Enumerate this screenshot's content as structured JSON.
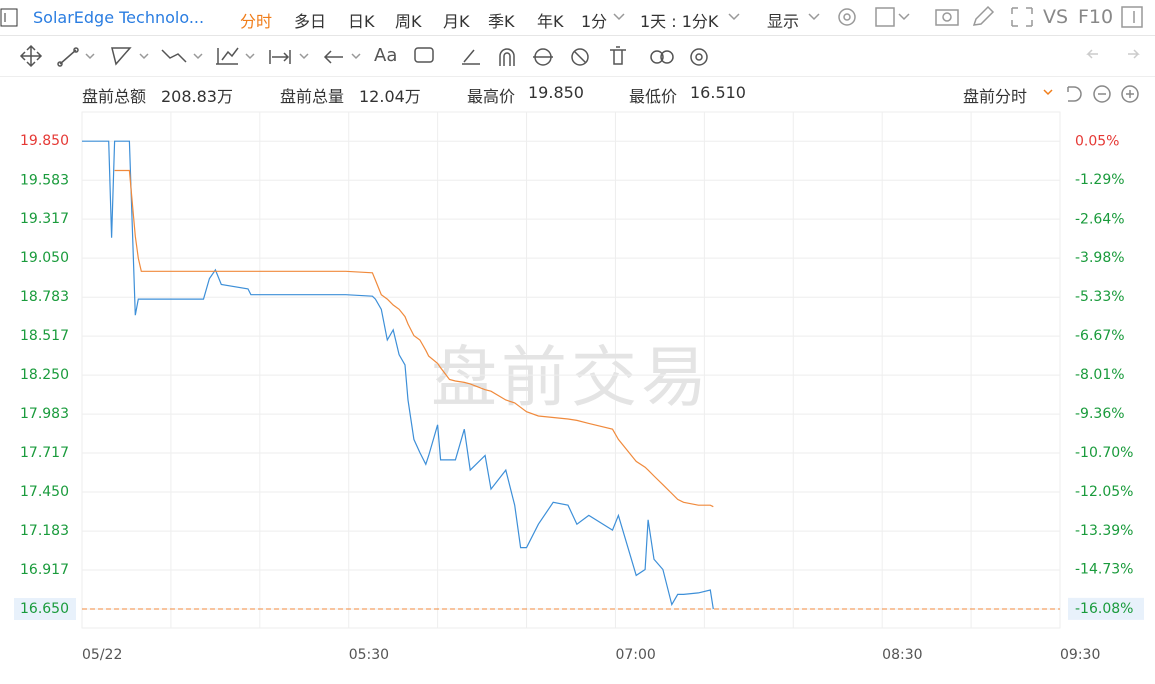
{
  "header": {
    "symbol": "SolarEdge Technolo...",
    "tabs": [
      "分时",
      "多日",
      "日K",
      "周K",
      "月K",
      "季K",
      "年K",
      "1分",
      "1天 : 1分K",
      "显示",
      "VS",
      "F10"
    ]
  },
  "toolbar": {
    "text_tool": "Aa"
  },
  "stats": [
    {
      "label": "盘前总额",
      "value": "208.83万"
    },
    {
      "label": "盘前总量",
      "value": "12.04万"
    },
    {
      "label": "最高价",
      "value": "19.850"
    },
    {
      "label": "最低价",
      "value": "16.510"
    }
  ],
  "chart_mode": "盘前分时",
  "chart_data": {
    "type": "line",
    "watermark": "盘前交易",
    "x": [
      "04:00",
      "04:09",
      "04:10",
      "04:11",
      "04:16",
      "04:18",
      "04:19",
      "04:20",
      "04:41",
      "04:43",
      "04:45",
      "04:47",
      "04:56",
      "04:57",
      "05:29",
      "05:38",
      "05:39",
      "05:41",
      "05:43",
      "05:45",
      "05:47",
      "05:49",
      "05:50",
      "05:52",
      "05:54",
      "05:56",
      "05:57",
      "06:00",
      "06:01",
      "06:04",
      "06:06",
      "06:09",
      "06:11",
      "06:16",
      "06:18",
      "06:23",
      "06:26",
      "06:28",
      "06:30",
      "06:34",
      "06:39",
      "06:44",
      "06:47",
      "06:51",
      "06:59",
      "07:01",
      "07:07",
      "07:10",
      "07:11",
      "07:13",
      "07:16",
      "07:19",
      "07:21",
      "07:23",
      "07:28",
      "07:32",
      "07:33"
    ],
    "series": [
      {
        "color": "#3d8fd8",
        "values": [
          19.85,
          19.85,
          19.19,
          19.85,
          19.85,
          18.66,
          18.77,
          18.77,
          18.77,
          18.91,
          18.97,
          18.87,
          18.84,
          18.8,
          18.8,
          18.79,
          18.77,
          18.7,
          18.49,
          18.56,
          18.39,
          18.32,
          18.08,
          17.81,
          17.72,
          17.64,
          17.7,
          17.91,
          17.67,
          17.67,
          17.67,
          17.88,
          17.6,
          17.7,
          17.47,
          17.6,
          17.36,
          17.07,
          17.07,
          17.23,
          17.38,
          17.36,
          17.23,
          17.29,
          17.19,
          17.29,
          16.88,
          16.92,
          17.26,
          16.99,
          16.92,
          16.68,
          16.75,
          16.75,
          16.76,
          16.78,
          16.65
        ]
      },
      {
        "color": "#f08a3c",
        "values": [
          null,
          null,
          null,
          19.65,
          19.65,
          19.2,
          19.05,
          18.96,
          18.96,
          18.96,
          18.96,
          18.96,
          18.96,
          18.96,
          18.96,
          18.95,
          18.9,
          18.8,
          18.77,
          18.73,
          18.7,
          18.65,
          18.6,
          18.52,
          18.49,
          18.42,
          18.38,
          18.33,
          18.3,
          18.22,
          18.21,
          18.2,
          18.19,
          18.15,
          18.14,
          18.08,
          18.06,
          18.03,
          18,
          17.97,
          17.96,
          17.95,
          17.94,
          17.92,
          17.88,
          17.81,
          17.66,
          17.62,
          17.6,
          17.56,
          17.5,
          17.44,
          17.4,
          17.38,
          17.36,
          17.36,
          17.35
        ]
      }
    ],
    "xlim": [
      "04:00",
      "09:30"
    ],
    "xticks": [
      {
        "value": "04:00",
        "label": "05/22"
      },
      "05:30",
      "07:00",
      "08:30",
      "09:30"
    ],
    "ylim": [
      16.52,
      20.05
    ],
    "yticks": [
      {
        "value": 19.85,
        "label": "19.850"
      },
      19.583,
      19.317,
      {
        "value": 19.05,
        "label": "19.050"
      },
      18.783,
      18.517,
      {
        "value": 18.25,
        "label": "18.250"
      },
      17.983,
      17.717,
      {
        "value": 17.45,
        "label": "17.450"
      },
      17.183,
      16.917,
      {
        "value": 16.65,
        "label": "16.650"
      }
    ],
    "y2lim": [
      -16.74,
      1.06
    ],
    "y2ticks": [
      {
        "value": 0.05,
        "label": "0.05%"
      },
      {
        "value": -1.29,
        "label": "-1.29%"
      },
      {
        "value": -2.64,
        "label": "-2.64%"
      },
      {
        "value": -3.98,
        "label": "-3.98%"
      },
      {
        "value": -5.33,
        "label": "-5.33%"
      },
      {
        "value": -6.67,
        "label": "-6.67%"
      },
      {
        "value": -8.01,
        "label": "-8.01%"
      },
      {
        "value": -9.36,
        "label": "-9.36%"
      },
      {
        "value": -10.7,
        "label": "-10.70%"
      },
      {
        "value": -12.05,
        "label": "-12.05%"
      },
      {
        "value": -13.39,
        "label": "-13.39%"
      },
      {
        "value": -14.73,
        "label": "-14.73%"
      },
      {
        "value": -16.08,
        "label": "-16.08%"
      }
    ],
    "last_price": 16.65,
    "last_price_color": "#f08a3c",
    "up_color": "#e53935",
    "down_color": "#1a9b3c",
    "grid": true
  }
}
